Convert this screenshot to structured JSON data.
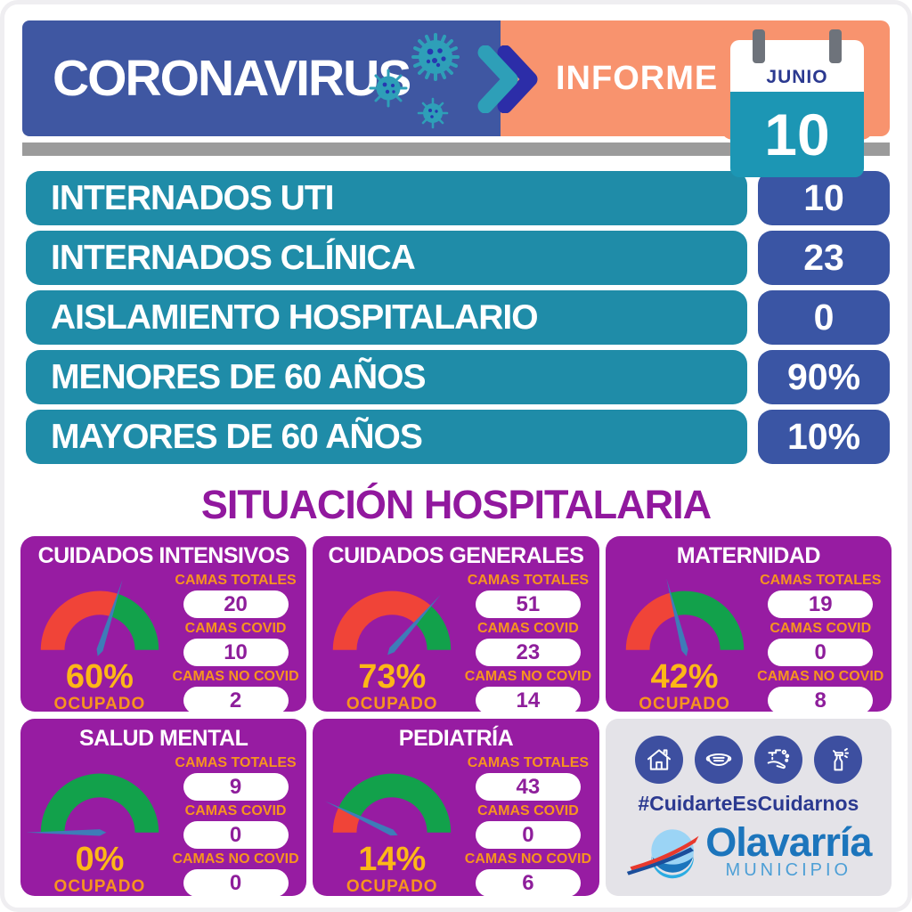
{
  "header": {
    "title": "CORONAVIRUS",
    "informe": "INFORME",
    "calendar": {
      "month": "JUNIO",
      "day": "10"
    }
  },
  "stats": {
    "rows": [
      {
        "label": "INTERNADOS UTI",
        "value": "10"
      },
      {
        "label": "INTERNADOS CLÍNICA",
        "value": "23"
      },
      {
        "label": "AISLAMIENTO HOSPITALARIO",
        "value": "0"
      },
      {
        "label": "MENORES DE 60 AÑOS",
        "value": "90%"
      },
      {
        "label": "MAYORES DE 60 AÑOS",
        "value": "10%"
      }
    ]
  },
  "section_title": "SITUACIÓN HOSPITALARIA",
  "bed_labels": {
    "total": "CAMAS TOTALES",
    "covid": "CAMAS COVID",
    "no_covid": "CAMAS NO COVID"
  },
  "occupied_word": "OCUPADO",
  "chart_data": [
    {
      "type": "gauge",
      "title": "CUIDADOS INTENSIVOS",
      "percent": 60,
      "percent_label": "60%",
      "camas_totales": "20",
      "camas_covid": "10",
      "camas_no_covid": "2"
    },
    {
      "type": "gauge",
      "title": "CUIDADOS GENERALES",
      "percent": 73,
      "percent_label": "73%",
      "camas_totales": "51",
      "camas_covid": "23",
      "camas_no_covid": "14"
    },
    {
      "type": "gauge",
      "title": "MATERNIDAD",
      "percent": 42,
      "percent_label": "42%",
      "camas_totales": "19",
      "camas_covid": "0",
      "camas_no_covid": "8"
    },
    {
      "type": "gauge",
      "title": "SALUD MENTAL",
      "percent": 0,
      "percent_label": "0%",
      "camas_totales": "9",
      "camas_covid": "0",
      "camas_no_covid": "0"
    },
    {
      "type": "gauge",
      "title": "PEDIATRÍA",
      "percent": 14,
      "percent_label": "14%",
      "camas_totales": "43",
      "camas_covid": "0",
      "camas_no_covid": "6"
    }
  ],
  "footer": {
    "hashtag": "#CuidarteEsCuidarnos",
    "logo": {
      "name": "Olavarría",
      "subtitle": "MUNICIPIO"
    },
    "icons": [
      "house-icon",
      "mask-icon",
      "hand-washing-icon",
      "spray-icon"
    ]
  },
  "colors": {
    "header_blue": "#3F57A2",
    "header_orange": "#F8936E",
    "calendar_teal": "#1C96B4",
    "row_teal": "#1F8CA8",
    "badge_blue": "#3A55A4",
    "card_purple": "#971CA2",
    "title_purple": "#91189E",
    "gauge_red": "#F04438",
    "gauge_green": "#12A14B",
    "needle_blue": "#3E7CB8",
    "percent_yellow": "#FDB717",
    "label_orange": "#F7941E",
    "dark_blue": "#2B3990",
    "logo_blue": "#1C75BC"
  }
}
